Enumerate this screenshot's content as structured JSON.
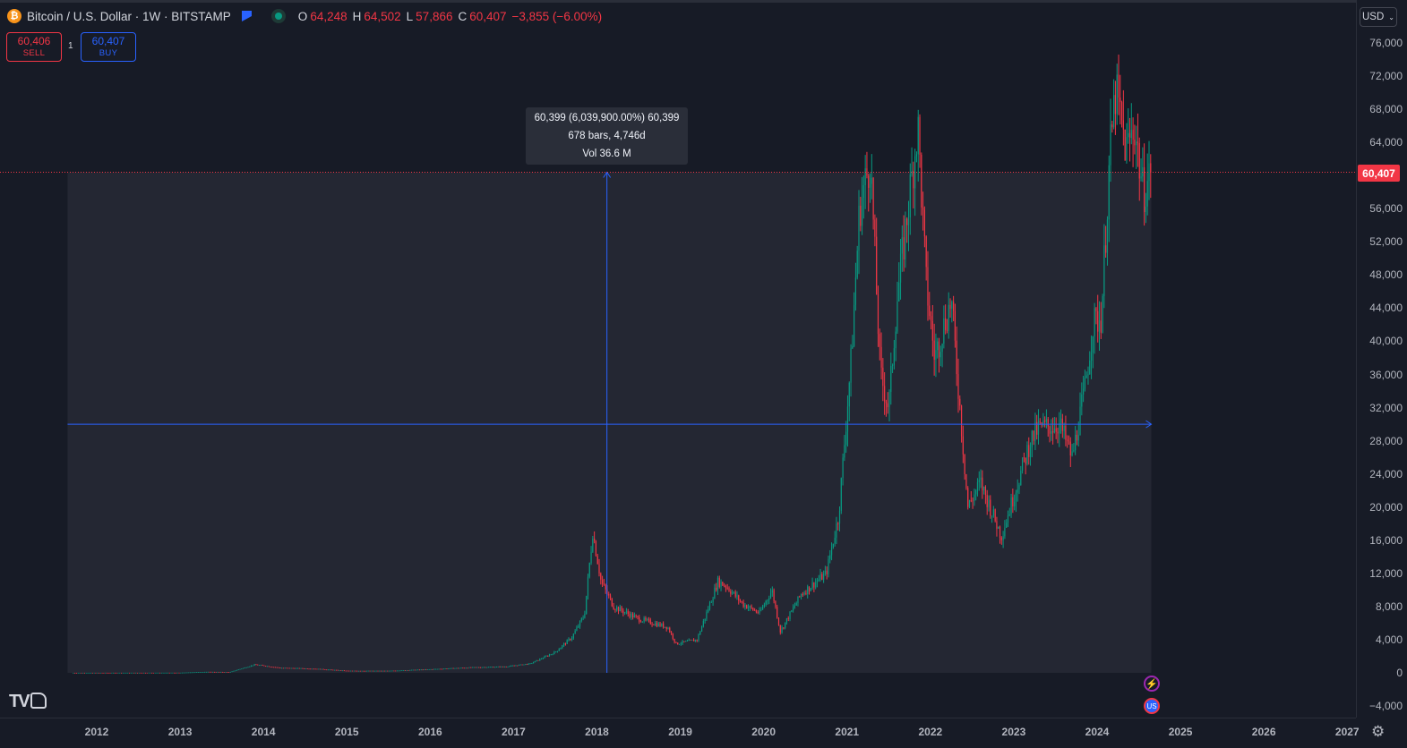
{
  "header": {
    "coin_glyph": "₿",
    "symbol_title": "Bitcoin / U.S. Dollar · 1W · BITSTAMP",
    "ohlc": [
      {
        "key": "O",
        "value": "64,248"
      },
      {
        "key": "H",
        "value": "64,502"
      },
      {
        "key": "L",
        "value": "57,866"
      },
      {
        "key": "C",
        "value": "60,407"
      },
      {
        "key": "",
        "value": "−3,855 (−6.00%)"
      }
    ]
  },
  "trade": {
    "sell_price": "60,406",
    "sell_label": "SELL",
    "quantity": "1",
    "buy_price": "60,407",
    "buy_label": "BUY"
  },
  "currency_selector": {
    "label": "USD",
    "chevron": "⌄"
  },
  "last_price_label": "60,407",
  "measure_tooltip": {
    "line1": "60,399 (6,039,900.00%) 60,399",
    "line2": "678 bars, 4,746d",
    "line3": "Vol 36.6 M"
  },
  "logo_text": "TV",
  "event_icons": {
    "flash": "⚡",
    "flag": "US"
  },
  "icons": [
    "bitcoin-icon",
    "flag-icon",
    "status-dot-icon",
    "chevron-down-icon",
    "lightning-icon",
    "us-flag-icon",
    "gear-icon"
  ],
  "colors": {
    "background": "#171b26",
    "up": "#089981",
    "down": "#f23645",
    "measure_fill": "#242733",
    "crosshair": "#2962ff",
    "last_price": "#f23645"
  },
  "chart_data": {
    "type": "candlestick",
    "title": "Bitcoin / U.S. Dollar · 1W · BITSTAMP",
    "y_tick_labels": [
      "76,000",
      "72,000",
      "68,000",
      "64,000",
      "56,000",
      "52,000",
      "48,000",
      "44,000",
      "40,000",
      "36,000",
      "32,000",
      "28,000",
      "24,000",
      "20,000",
      "16,000",
      "12,000",
      "8,000",
      "4,000",
      "0",
      "−4,000"
    ],
    "x_tick_labels": [
      "2012",
      "2013",
      "2014",
      "2015",
      "2016",
      "2017",
      "2018",
      "2019",
      "2020",
      "2021",
      "2022",
      "2023",
      "2024",
      "2025",
      "2026",
      "2027"
    ],
    "ylim": [
      -5500,
      78000
    ],
    "xlim": [
      2011.6,
      2027.05
    ],
    "grid": false,
    "last_price": 60407,
    "measure": {
      "x_start": 2011.65,
      "x_end": 2024.65,
      "price_start": 0,
      "price_end": 60399,
      "crosshair_x": 2018.12,
      "crosshair_y": 30000
    },
    "approx_close_series": [
      [
        2011.7,
        5
      ],
      [
        2012.5,
        10
      ],
      [
        2013.0,
        15
      ],
      [
        2013.3,
        120
      ],
      [
        2013.6,
        100
      ],
      [
        2013.9,
        1000
      ],
      [
        2014.2,
        600
      ],
      [
        2014.6,
        500
      ],
      [
        2015.0,
        250
      ],
      [
        2015.5,
        240
      ],
      [
        2016.0,
        430
      ],
      [
        2016.5,
        650
      ],
      [
        2016.9,
        750
      ],
      [
        2017.2,
        1100
      ],
      [
        2017.5,
        2500
      ],
      [
        2017.7,
        4300
      ],
      [
        2017.85,
        7000
      ],
      [
        2017.95,
        17000
      ],
      [
        2018.05,
        11000
      ],
      [
        2018.2,
        8000
      ],
      [
        2018.5,
        6500
      ],
      [
        2018.85,
        5500
      ],
      [
        2018.95,
        3500
      ],
      [
        2019.2,
        4000
      ],
      [
        2019.45,
        11000
      ],
      [
        2019.55,
        10500
      ],
      [
        2019.75,
        8300
      ],
      [
        2019.95,
        7200
      ],
      [
        2020.1,
        10000
      ],
      [
        2020.2,
        5000
      ],
      [
        2020.45,
        9500
      ],
      [
        2020.75,
        12000
      ],
      [
        2020.9,
        19000
      ],
      [
        2021.05,
        38000
      ],
      [
        2021.15,
        56000
      ],
      [
        2021.28,
        62000
      ],
      [
        2021.4,
        36000
      ],
      [
        2021.5,
        32000
      ],
      [
        2021.6,
        45000
      ],
      [
        2021.85,
        66000
      ],
      [
        2021.95,
        47000
      ],
      [
        2022.05,
        38000
      ],
      [
        2022.25,
        45000
      ],
      [
        2022.45,
        20000
      ],
      [
        2022.6,
        23000
      ],
      [
        2022.85,
        16500
      ],
      [
        2023.05,
        23000
      ],
      [
        2023.2,
        28000
      ],
      [
        2023.3,
        29500
      ],
      [
        2023.55,
        30000
      ],
      [
        2023.7,
        26000
      ],
      [
        2023.85,
        34000
      ],
      [
        2023.95,
        42000
      ],
      [
        2024.05,
        43000
      ],
      [
        2024.15,
        62000
      ],
      [
        2024.22,
        70000
      ],
      [
        2024.35,
        63000
      ],
      [
        2024.45,
        66000
      ],
      [
        2024.55,
        58000
      ],
      [
        2024.65,
        60407
      ]
    ]
  }
}
